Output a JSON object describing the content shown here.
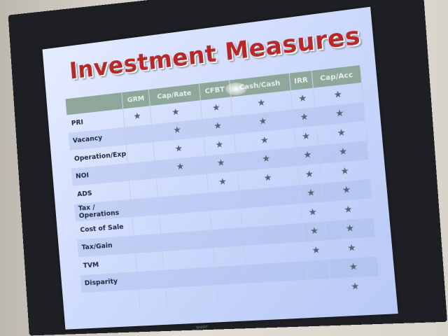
{
  "slide": {
    "title": "Investment Measures",
    "columns": [
      "",
      "GRM",
      "Cap/Rate",
      "CFBT",
      "Cash/Cash",
      "IRR",
      "Cap/Acc"
    ],
    "rows": [
      {
        "label": "PRI",
        "marks": [
          "★",
          "★",
          "★",
          "★",
          "★",
          "★"
        ]
      },
      {
        "label": "Vacancy",
        "marks": [
          "",
          "★",
          "★",
          "★",
          "★",
          "★"
        ]
      },
      {
        "label": "Operation/Exp",
        "marks": [
          "",
          "★",
          "★",
          "★",
          "★",
          "★"
        ]
      },
      {
        "label": "NOI",
        "marks": [
          "",
          "★",
          "★",
          "★",
          "★",
          "★"
        ]
      },
      {
        "label": "ADS",
        "marks": [
          "",
          "",
          "★",
          "★",
          "★",
          "★"
        ]
      },
      {
        "label": "Tax / Operations",
        "marks": [
          "",
          "",
          "",
          "",
          "★",
          "★"
        ]
      },
      {
        "label": "Cost of Sale",
        "marks": [
          "",
          "",
          "",
          "",
          "★",
          "★"
        ]
      },
      {
        "label": "Tax/Gain",
        "marks": [
          "",
          "",
          "",
          "",
          "★",
          "★"
        ]
      },
      {
        "label": "TVM",
        "marks": [
          "",
          "",
          "",
          "",
          "★",
          "★"
        ]
      },
      {
        "label": "Disparity",
        "marks": [
          "",
          "",
          "",
          "",
          "",
          "★"
        ]
      },
      {
        "label": "",
        "marks": [
          "",
          "",
          "",
          "",
          "",
          "★"
        ]
      }
    ],
    "mark_icon": "star-icon"
  },
  "tv": {
    "brand": "SHARP"
  }
}
